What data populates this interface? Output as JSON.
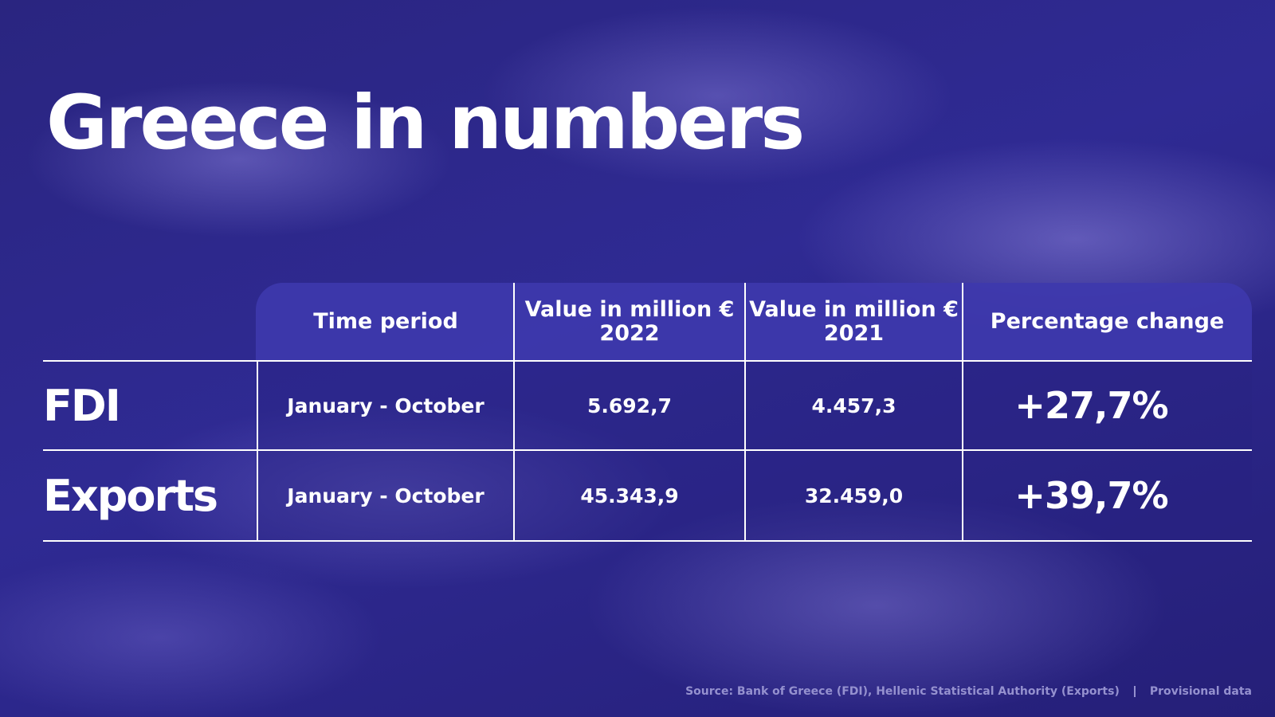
{
  "title": "Greece in numbers",
  "table": {
    "columns": [
      {
        "label": "Time period"
      },
      {
        "label": "Value in million €",
        "year": "2022"
      },
      {
        "label": "Value in million €",
        "year": "2021"
      },
      {
        "label": "Percentage change"
      }
    ],
    "rows": [
      {
        "label": "FDI",
        "period": "January - October",
        "value_2022": "5.692,7",
        "value_2021": "4.457,3",
        "change": "+27,7%"
      },
      {
        "label": "Exports",
        "period": "January - October",
        "value_2022": "45.343,9",
        "value_2021": "32.459,0",
        "change": "+39,7%"
      }
    ]
  },
  "footer": {
    "source": "Source: Bank of Greece (FDI), Hellenic Statistical Authority (Exports)",
    "note": "Provisional data"
  }
}
